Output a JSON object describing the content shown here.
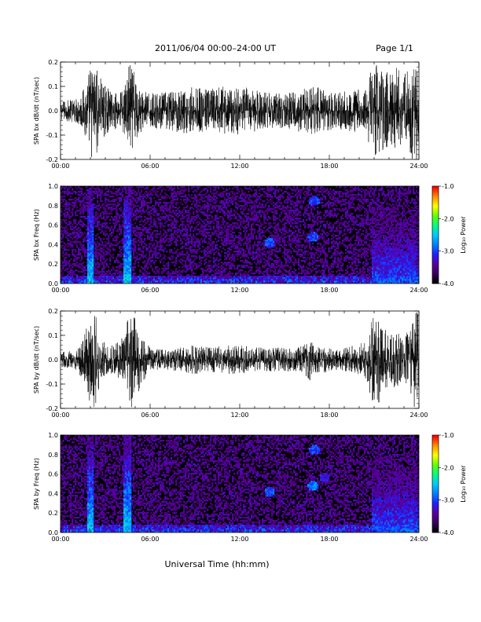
{
  "header": {
    "title": "2011/06/04  00:00–24:00 UT",
    "page": "Page 1/1"
  },
  "xlabel": "Universal Time (hh:mm)",
  "chart_data": [
    {
      "type": "line",
      "ylabel": "SPA bx dB/dt (nT/sec)",
      "xlim": [
        0,
        24
      ],
      "ylim": [
        -0.2,
        0.2
      ],
      "xticks": [
        "00:00",
        "06:00",
        "12:00",
        "18:00",
        "24:00"
      ],
      "yticks": [
        "-0.2",
        "-0.1",
        "0.0",
        "0.1",
        "0.2"
      ],
      "color": "#000000",
      "envelope": {
        "x_hours": [
          0,
          1,
          1.6,
          2,
          2.3,
          2.8,
          3.5,
          4.3,
          4.6,
          5,
          5.4,
          6,
          7,
          8,
          9,
          10,
          11,
          12,
          13,
          14,
          15,
          16,
          16.7,
          17,
          18,
          19,
          19.8,
          20.5,
          20.9,
          21.2,
          22,
          22.5,
          23,
          23.4,
          23.7,
          24
        ],
        "amplitude": [
          0.04,
          0.05,
          0.1,
          0.2,
          0.2,
          0.12,
          0.07,
          0.1,
          0.2,
          0.16,
          0.09,
          0.07,
          0.08,
          0.09,
          0.1,
          0.09,
          0.1,
          0.1,
          0.09,
          0.08,
          0.07,
          0.09,
          0.1,
          0.1,
          0.08,
          0.08,
          0.09,
          0.1,
          0.2,
          0.2,
          0.15,
          0.2,
          0.14,
          0.2,
          0.2,
          0.2
        ]
      }
    },
    {
      "type": "heatmap",
      "ylabel": "SPA bx Freq (Hz)",
      "xlim": [
        0,
        24
      ],
      "ylim": [
        0.0,
        1.0
      ],
      "xticks": [
        "00:00",
        "06:00",
        "12:00",
        "18:00",
        "24:00"
      ],
      "yticks": [
        "0.0",
        "0.2",
        "0.4",
        "0.6",
        "0.8",
        "1.0"
      ],
      "colorbar": {
        "label": "Log₁₀ Power",
        "range": [
          -4.0,
          -1.0
        ],
        "ticks": [
          "-1.0",
          "-2.0",
          "-3.0",
          "-4.0"
        ]
      },
      "colormap": [
        "#000000",
        "#3a0060",
        "#5a00a0",
        "#2020ff",
        "#0080ff",
        "#00c8ff",
        "#00ff80",
        "#60ff00",
        "#ffff00",
        "#ff9000",
        "#ff0000"
      ],
      "power_log10": {
        "background": -4.0,
        "low_freq_band": {
          "f_max_hz": 0.08,
          "power": -3.2
        },
        "bursts": [
          {
            "t0_h": 1.8,
            "t1_h": 2.2,
            "power": -2.5
          },
          {
            "t0_h": 4.2,
            "t1_h": 4.7,
            "power": -2.5
          },
          {
            "t0_h": 20.8,
            "t1_h": 24.0,
            "power": -3.0
          }
        ],
        "blobs": [
          {
            "t_h": 14.0,
            "f_hz": 0.42,
            "power": -3.0
          },
          {
            "t_h": 17.0,
            "f_hz": 0.85,
            "power": -3.0
          },
          {
            "t_h": 16.9,
            "f_hz": 0.48,
            "power": -3.0
          }
        ]
      }
    },
    {
      "type": "line",
      "ylabel": "SPA by dB/dt (nT/sec)",
      "xlim": [
        0,
        24
      ],
      "ylim": [
        -0.2,
        0.2
      ],
      "xticks": [
        "00:00",
        "06:00",
        "12:00",
        "18:00",
        "24:00"
      ],
      "yticks": [
        "-0.2",
        "-0.1",
        "0.0",
        "0.1",
        "0.2"
      ],
      "color": "#000000",
      "envelope": {
        "x_hours": [
          0,
          1,
          1.6,
          2,
          2.3,
          2.8,
          3.5,
          4.3,
          4.6,
          5,
          5.4,
          6,
          7,
          8,
          9,
          10,
          11,
          12,
          13,
          14,
          15,
          16,
          16.7,
          17,
          18,
          19,
          19.8,
          20.5,
          20.9,
          21.2,
          22,
          22.5,
          23,
          23.4,
          23.7,
          24
        ],
        "amplitude": [
          0.03,
          0.04,
          0.1,
          0.2,
          0.2,
          0.08,
          0.06,
          0.1,
          0.2,
          0.2,
          0.1,
          0.05,
          0.04,
          0.05,
          0.06,
          0.05,
          0.06,
          0.06,
          0.05,
          0.05,
          0.05,
          0.05,
          0.09,
          0.06,
          0.05,
          0.05,
          0.06,
          0.08,
          0.2,
          0.2,
          0.1,
          0.12,
          0.08,
          0.15,
          0.2,
          0.2
        ]
      }
    },
    {
      "type": "heatmap",
      "ylabel": "SPA by Freq (Hz)",
      "xlim": [
        0,
        24
      ],
      "ylim": [
        0.0,
        1.0
      ],
      "xticks": [
        "00:00",
        "06:00",
        "12:00",
        "18:00",
        "24:00"
      ],
      "yticks": [
        "0.0",
        "0.2",
        "0.4",
        "0.6",
        "0.8",
        "1.0"
      ],
      "colorbar": {
        "label": "Log₁₀ Power",
        "range": [
          -4.0,
          -1.0
        ],
        "ticks": [
          "-1.0",
          "-2.0",
          "-3.0",
          "-4.0"
        ]
      },
      "colormap": [
        "#000000",
        "#3a0060",
        "#5a00a0",
        "#2020ff",
        "#0080ff",
        "#00c8ff",
        "#00ff80",
        "#60ff00",
        "#ffff00",
        "#ff9000",
        "#ff0000"
      ],
      "power_log10": {
        "background": -4.0,
        "low_freq_band": {
          "f_max_hz": 0.08,
          "power": -3.2
        },
        "bursts": [
          {
            "t0_h": 1.8,
            "t1_h": 2.2,
            "power": -2.5
          },
          {
            "t0_h": 4.2,
            "t1_h": 4.7,
            "power": -2.5
          },
          {
            "t0_h": 20.8,
            "t1_h": 24.0,
            "power": -3.0
          }
        ],
        "blobs": [
          {
            "t_h": 14.0,
            "f_hz": 0.42,
            "power": -3.0
          },
          {
            "t_h": 17.0,
            "f_hz": 0.85,
            "power": -3.0
          },
          {
            "t_h": 16.9,
            "f_hz": 0.48,
            "power": -2.8
          },
          {
            "t_h": 17.7,
            "f_hz": 0.56,
            "power": -3.2
          }
        ]
      }
    }
  ]
}
